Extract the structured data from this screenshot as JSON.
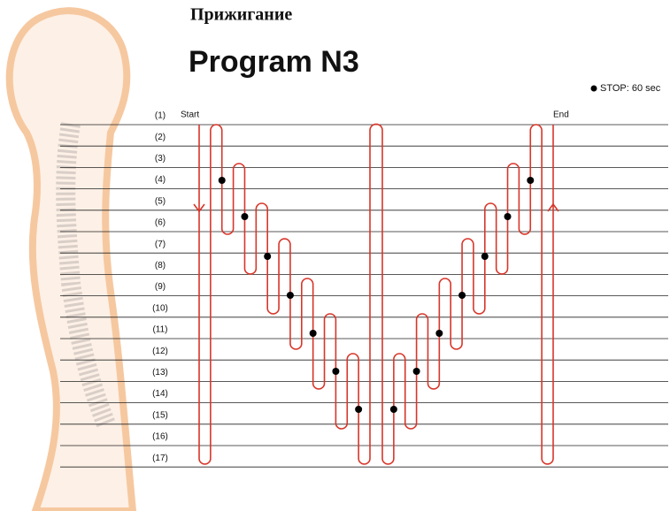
{
  "header": {
    "title": "Прижигание",
    "subtitle": "Program N3"
  },
  "legend": {
    "label": "STOP: 60 sec"
  },
  "markers": {
    "start": "Start",
    "end": "End"
  },
  "rows": [
    "(1)",
    "(2)",
    "(3)",
    "(4)",
    "(5)",
    "(6)",
    "(7)",
    "(8)",
    "(9)",
    "(10)",
    "(11)",
    "(12)",
    "(13)",
    "(14)",
    "(15)",
    "(16)",
    "(17)"
  ]
}
